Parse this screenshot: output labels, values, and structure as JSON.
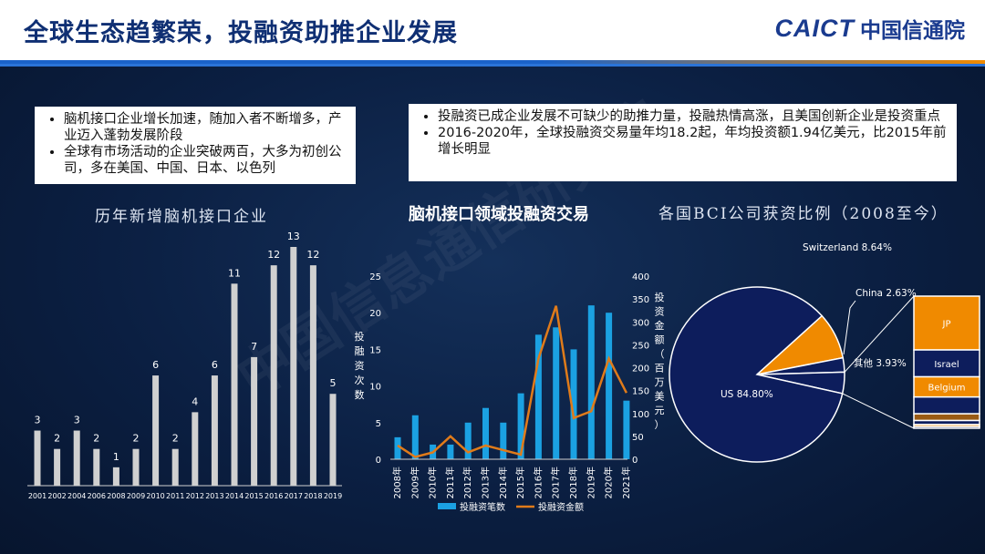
{
  "header": {
    "title": "全球生态趋繁荣，投融资助推企业发展",
    "logo_text": "CAICT",
    "logo_cn": "中国信通院",
    "colors": {
      "title": "#0f2f73",
      "accent_blue": "#1a62c9",
      "accent_orange": "#f08a00"
    }
  },
  "notes": {
    "left": [
      "脑机接口企业增长加速，随加入者不断增多，产业迈入蓬勃发展阶段",
      "全球有市场活动的企业突破两百，大多为初创公司，多在美国、中国、日本、以色列"
    ],
    "right": [
      "投融资已成企业发展不可缺少的助推力量，投融热情高涨，且美国创新企业是投资重点",
      "2016-2020年，全球投融资交易量年均18.2起，年均投资额1.94亿美元，比2015年前增长明显"
    ]
  },
  "watermark": "中国信息通信研究院",
  "chart_data": [
    {
      "type": "bar",
      "title": "历年新增脑机接口企业",
      "categories": [
        "2001",
        "2002",
        "2004",
        "2006",
        "2008",
        "2009",
        "2010",
        "2011",
        "2012",
        "2013",
        "2014",
        "2015",
        "2016",
        "2017",
        "2018",
        "2019"
      ],
      "values": [
        3,
        2,
        3,
        2,
        1,
        2,
        6,
        2,
        4,
        6,
        11,
        7,
        12,
        13,
        12,
        5
      ],
      "ylim": [
        0,
        13
      ],
      "grid": false,
      "colors": {
        "bar": "#d0d0d0"
      }
    },
    {
      "type": "bar+line",
      "title": "脑机接口领域投融资交易",
      "categories": [
        "2008年",
        "2009年",
        "2010年",
        "2011年",
        "2012年",
        "2013年",
        "2014年",
        "2015年",
        "2016年",
        "2017年",
        "2018年",
        "2019年",
        "2020年",
        "2021年"
      ],
      "series": [
        {
          "name": "投融资笔数",
          "type": "bar",
          "axis": "left",
          "color": "#1ba1e2",
          "values": [
            3,
            6,
            2,
            2,
            5,
            7,
            5,
            9,
            17,
            18,
            15,
            21,
            20,
            8
          ]
        },
        {
          "name": "投融资金额",
          "type": "line",
          "axis": "right",
          "color": "#e07b1a",
          "values": [
            30,
            5,
            15,
            50,
            15,
            30,
            20,
            10,
            220,
            335,
            90,
            105,
            220,
            145
          ]
        }
      ],
      "y_left": {
        "label": "投融资次数",
        "ylim": [
          0,
          25
        ],
        "ticks": [
          "0",
          "5",
          "10",
          "15",
          "20",
          "25"
        ]
      },
      "y_right": {
        "label": "投资金额（百万美元）",
        "ylim": [
          0,
          400
        ],
        "ticks": [
          "0",
          "50",
          "100",
          "150",
          "200",
          "250",
          "300",
          "350",
          "400"
        ]
      },
      "legend": "bottom",
      "grid": false
    },
    {
      "type": "pie",
      "title": "各国BCI公司获资比例（2008至今）",
      "slices": [
        {
          "label": "US",
          "value": 84.8,
          "text": "US 84.80%",
          "color": "#0d1d5c"
        },
        {
          "label": "Switzerland",
          "value": 8.64,
          "text": "Switzerland  8.64%",
          "color": "#f08a00"
        },
        {
          "label": "China",
          "value": 2.63,
          "text": "China 2.63%",
          "color": "#0d1d5c"
        },
        {
          "label": "其他",
          "value": 3.93,
          "text": "其他  3.93%",
          "color": "#0d1d5c"
        }
      ],
      "breakdown_of": "其他",
      "breakdown": [
        {
          "label": "JP",
          "value": 1.6,
          "color": "#f08a00"
        },
        {
          "label": "Israel",
          "value": 0.8,
          "color": "#0d1d5c"
        },
        {
          "label": "Belgium",
          "value": 0.6,
          "color": "#f08a00"
        },
        {
          "label": "",
          "value": 0.5,
          "color": "#0d1d5c"
        },
        {
          "label": "",
          "value": 0.2,
          "color": "#9a5a14"
        },
        {
          "label": "",
          "value": 0.12,
          "color": "#0d1d5c"
        },
        {
          "label": "",
          "value": 0.06,
          "color": "#f08a00"
        },
        {
          "label": "",
          "value": 0.05,
          "color": "#0d1d5c"
        }
      ]
    }
  ]
}
